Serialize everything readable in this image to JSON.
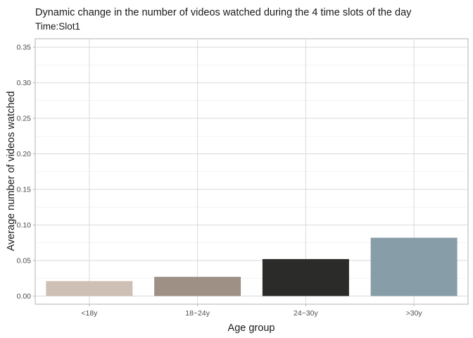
{
  "chart_data": {
    "type": "bar",
    "title": "Dynamic change in the number of videos watched during the 4 time slots of the day",
    "subtitle": "Time:Slot1",
    "xlabel": "Age group",
    "ylabel": "Average number of videos watched",
    "categories": [
      "<18y",
      "18~24y",
      "24~30y",
      ">30y"
    ],
    "values": [
      0.021,
      0.027,
      0.052,
      0.082
    ],
    "colors": [
      "#cfc0b5",
      "#9e9085",
      "#2b2b29",
      "#879ea8"
    ],
    "ylim": [
      -0.0115,
      0.362
    ],
    "yticks": [
      0.0,
      0.05,
      0.1,
      0.15,
      0.2,
      0.25,
      0.3,
      0.35
    ],
    "ytick_labels": [
      "0.00",
      "0.05",
      "0.10",
      "0.15",
      "0.20",
      "0.25",
      "0.30",
      "0.35"
    ],
    "grid": true,
    "legend": "none"
  }
}
